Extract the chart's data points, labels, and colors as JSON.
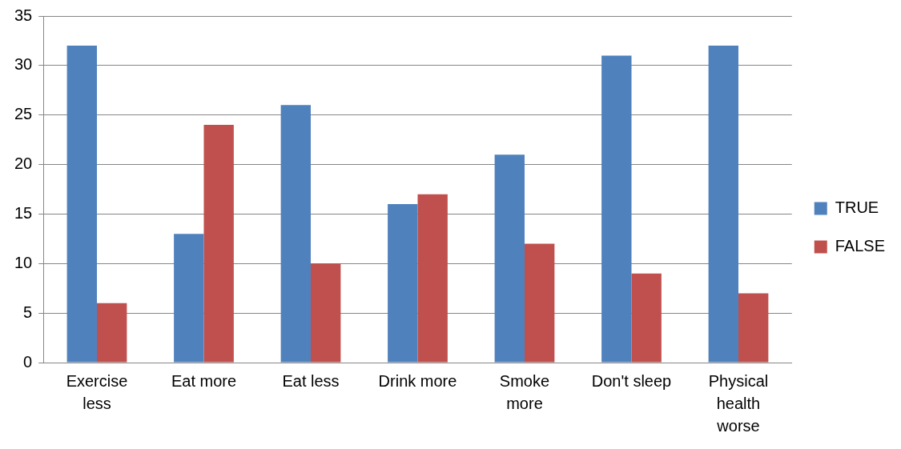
{
  "chart_data": {
    "type": "bar",
    "categories": [
      "Exercise less",
      "Eat more",
      "Eat less",
      "Drink more",
      "Smoke more",
      "Don't sleep",
      "Physical health worse"
    ],
    "series": [
      {
        "name": "TRUE",
        "color": "#4f81bd",
        "values": [
          32,
          13,
          26,
          16,
          21,
          31,
          32
        ]
      },
      {
        "name": "FALSE",
        "color": "#c0504d",
        "values": [
          6,
          24,
          10,
          17,
          12,
          9,
          7
        ]
      }
    ],
    "ylim": [
      0,
      35
    ],
    "yticks": [
      0,
      5,
      10,
      15,
      20,
      25,
      30,
      35
    ],
    "grid": "y",
    "legend": "right"
  }
}
